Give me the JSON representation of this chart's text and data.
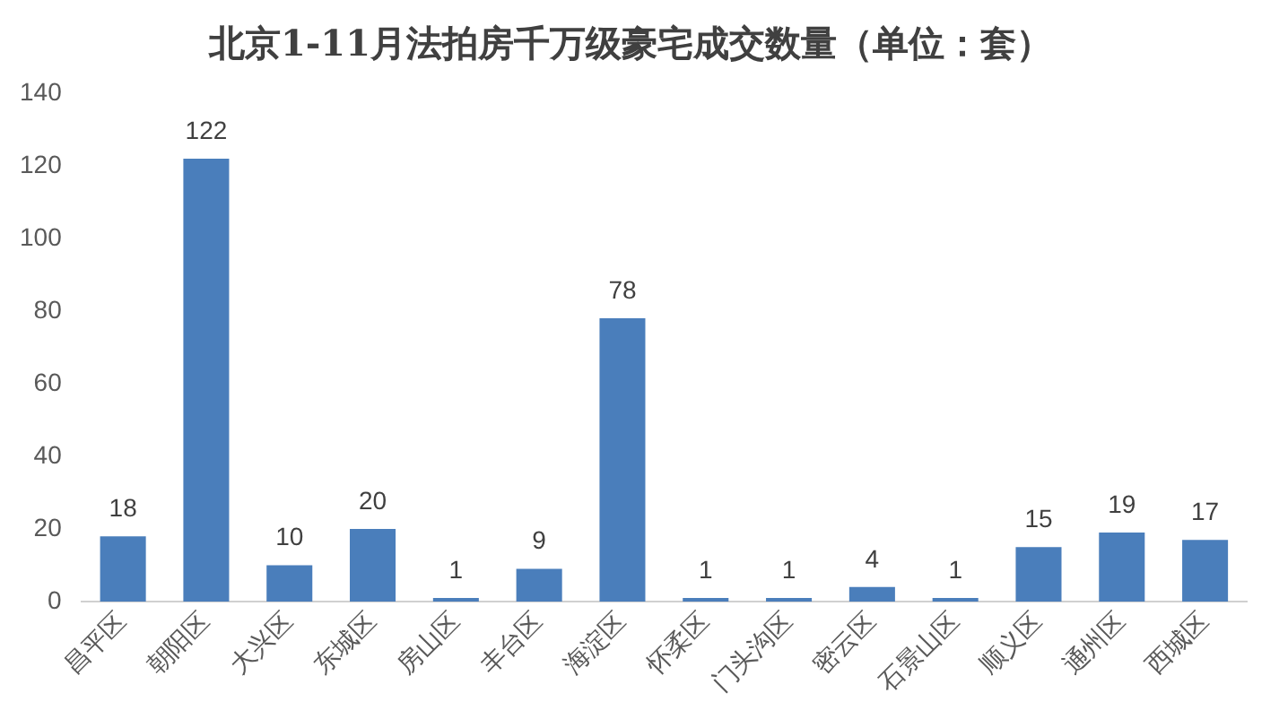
{
  "chart_data": {
    "type": "bar",
    "title": "北京1-11月法拍房千万级豪宅成交数量（单位：套）",
    "categories": [
      "昌平区",
      "朝阳区",
      "大兴区",
      "东城区",
      "房山区",
      "丰台区",
      "海淀区",
      "怀柔区",
      "门头沟区",
      "密云区",
      "石景山区",
      "顺义区",
      "通州区",
      "西城区"
    ],
    "values": [
      18,
      122,
      10,
      20,
      1,
      9,
      78,
      1,
      1,
      4,
      1,
      15,
      19,
      17
    ],
    "color": "#4a7ebb",
    "ylim": [
      0,
      140
    ],
    "yticks": [
      0,
      20,
      40,
      60,
      80,
      100,
      120,
      140
    ],
    "grid": false,
    "legend": false,
    "data_labels": true
  }
}
